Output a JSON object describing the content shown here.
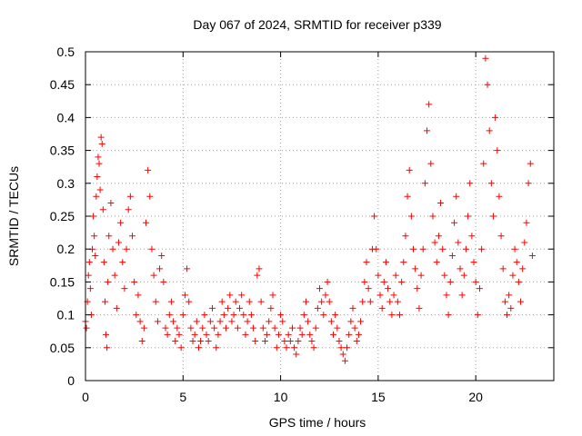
{
  "chart_data": {
    "type": "scatter",
    "title": "Day 067 of 2024, SRMTID for receiver p339",
    "xlabel": "GPS time / hours",
    "ylabel": "SRMTID / TECUs",
    "xlim": [
      0,
      24
    ],
    "ylim": [
      0,
      0.5
    ],
    "x_ticks": [
      0,
      5,
      10,
      15,
      20
    ],
    "x_tick_labels": [
      "0",
      "5",
      "10",
      "15",
      "20"
    ],
    "y_ticks": [
      0,
      0.05,
      0.1,
      0.15,
      0.2,
      0.25,
      0.3,
      0.35,
      0.4,
      0.45,
      0.5
    ],
    "y_tick_labels": [
      "0",
      "0.05",
      "0.1",
      "0.15",
      "0.2",
      "0.25",
      "0.3",
      "0.35",
      "0.4",
      "0.45",
      "0.5"
    ],
    "grid": true,
    "marker": "+",
    "marker_color": "#ff0000",
    "series": [
      {
        "name": "SRMTID",
        "points": [
          [
            0.0,
            0.09
          ],
          [
            0.05,
            0.08
          ],
          [
            0.1,
            0.12
          ],
          [
            0.15,
            0.16
          ],
          [
            0.2,
            0.18
          ],
          [
            0.25,
            0.14
          ],
          [
            0.3,
            0.1
          ],
          [
            0.35,
            0.2
          ],
          [
            0.4,
            0.25
          ],
          [
            0.45,
            0.22
          ],
          [
            0.5,
            0.19
          ],
          [
            0.55,
            0.28
          ],
          [
            0.6,
            0.31
          ],
          [
            0.65,
            0.34
          ],
          [
            0.7,
            0.33
          ],
          [
            0.75,
            0.29
          ],
          [
            0.8,
            0.37
          ],
          [
            0.85,
            0.36
          ],
          [
            0.9,
            0.26
          ],
          [
            0.95,
            0.18
          ],
          [
            1.0,
            0.12
          ],
          [
            1.05,
            0.07
          ],
          [
            1.1,
            0.05
          ],
          [
            1.15,
            0.15
          ],
          [
            1.2,
            0.22
          ],
          [
            1.3,
            0.27
          ],
          [
            1.4,
            0.2
          ],
          [
            1.5,
            0.16
          ],
          [
            1.6,
            0.11
          ],
          [
            1.7,
            0.21
          ],
          [
            1.8,
            0.24
          ],
          [
            1.9,
            0.18
          ],
          [
            2.0,
            0.14
          ],
          [
            2.1,
            0.2
          ],
          [
            2.2,
            0.26
          ],
          [
            2.3,
            0.28
          ],
          [
            2.4,
            0.22
          ],
          [
            2.5,
            0.15
          ],
          [
            2.6,
            0.1
          ],
          [
            2.7,
            0.13
          ],
          [
            2.8,
            0.09
          ],
          [
            2.9,
            0.06
          ],
          [
            3.0,
            0.08
          ],
          [
            3.1,
            0.24
          ],
          [
            3.2,
            0.32
          ],
          [
            3.3,
            0.28
          ],
          [
            3.4,
            0.2
          ],
          [
            3.5,
            0.16
          ],
          [
            3.6,
            0.12
          ],
          [
            3.7,
            0.09
          ],
          [
            3.8,
            0.17
          ],
          [
            3.9,
            0.19
          ],
          [
            4.0,
            0.15
          ],
          [
            4.1,
            0.08
          ],
          [
            4.2,
            0.07
          ],
          [
            4.3,
            0.1
          ],
          [
            4.4,
            0.12
          ],
          [
            4.5,
            0.09
          ],
          [
            4.6,
            0.06
          ],
          [
            4.7,
            0.08
          ],
          [
            4.8,
            0.07
          ],
          [
            4.9,
            0.05
          ],
          [
            5.0,
            0.1
          ],
          [
            5.1,
            0.13
          ],
          [
            5.2,
            0.17
          ],
          [
            5.3,
            0.12
          ],
          [
            5.4,
            0.08
          ],
          [
            5.5,
            0.06
          ],
          [
            5.6,
            0.07
          ],
          [
            5.7,
            0.09
          ],
          [
            5.8,
            0.05
          ],
          [
            5.9,
            0.06
          ],
          [
            6.0,
            0.08
          ],
          [
            6.1,
            0.1
          ],
          [
            6.2,
            0.07
          ],
          [
            6.3,
            0.06
          ],
          [
            6.4,
            0.09
          ],
          [
            6.5,
            0.11
          ],
          [
            6.6,
            0.08
          ],
          [
            6.7,
            0.05
          ],
          [
            6.8,
            0.07
          ],
          [
            6.9,
            0.09
          ],
          [
            7.0,
            0.12
          ],
          [
            7.1,
            0.1
          ],
          [
            7.2,
            0.08
          ],
          [
            7.3,
            0.11
          ],
          [
            7.4,
            0.13
          ],
          [
            7.5,
            0.09
          ],
          [
            7.6,
            0.1
          ],
          [
            7.7,
            0.12
          ],
          [
            7.8,
            0.08
          ],
          [
            7.9,
            0.11
          ],
          [
            8.0,
            0.13
          ],
          [
            8.1,
            0.1
          ],
          [
            8.2,
            0.07
          ],
          [
            8.3,
            0.09
          ],
          [
            8.4,
            0.12
          ],
          [
            8.5,
            0.1
          ],
          [
            8.6,
            0.08
          ],
          [
            8.7,
            0.06
          ],
          [
            8.8,
            0.16
          ],
          [
            8.9,
            0.17
          ],
          [
            9.0,
            0.12
          ],
          [
            9.1,
            0.08
          ],
          [
            9.2,
            0.06
          ],
          [
            9.3,
            0.07
          ],
          [
            9.4,
            0.09
          ],
          [
            9.5,
            0.11
          ],
          [
            9.6,
            0.13
          ],
          [
            9.7,
            0.08
          ],
          [
            9.8,
            0.05
          ],
          [
            9.9,
            0.07
          ],
          [
            10.0,
            0.1
          ],
          [
            10.1,
            0.09
          ],
          [
            10.2,
            0.06
          ],
          [
            10.3,
            0.05
          ],
          [
            10.4,
            0.07
          ],
          [
            10.5,
            0.06
          ],
          [
            10.6,
            0.08
          ],
          [
            10.7,
            0.05
          ],
          [
            10.8,
            0.04
          ],
          [
            10.9,
            0.06
          ],
          [
            11.0,
            0.08
          ],
          [
            11.1,
            0.07
          ],
          [
            11.2,
            0.1
          ],
          [
            11.3,
            0.12
          ],
          [
            11.4,
            0.09
          ],
          [
            11.5,
            0.07
          ],
          [
            11.6,
            0.06
          ],
          [
            11.7,
            0.05
          ],
          [
            11.8,
            0.08
          ],
          [
            11.9,
            0.11
          ],
          [
            12.0,
            0.14
          ],
          [
            12.1,
            0.12
          ],
          [
            12.2,
            0.1
          ],
          [
            12.3,
            0.13
          ],
          [
            12.4,
            0.15
          ],
          [
            12.5,
            0.12
          ],
          [
            12.6,
            0.09
          ],
          [
            12.7,
            0.07
          ],
          [
            12.8,
            0.1
          ],
          [
            12.9,
            0.08
          ],
          [
            13.0,
            0.06
          ],
          [
            13.1,
            0.05
          ],
          [
            13.2,
            0.04
          ],
          [
            13.3,
            0.03
          ],
          [
            13.4,
            0.05
          ],
          [
            13.5,
            0.07
          ],
          [
            13.6,
            0.09
          ],
          [
            13.7,
            0.11
          ],
          [
            13.8,
            0.08
          ],
          [
            13.9,
            0.06
          ],
          [
            14.0,
            0.07
          ],
          [
            14.1,
            0.09
          ],
          [
            14.2,
            0.12
          ],
          [
            14.3,
            0.15
          ],
          [
            14.4,
            0.18
          ],
          [
            14.5,
            0.14
          ],
          [
            14.6,
            0.12
          ],
          [
            14.7,
            0.2
          ],
          [
            14.8,
            0.25
          ],
          [
            14.9,
            0.2
          ],
          [
            15.0,
            0.16
          ],
          [
            15.1,
            0.13
          ],
          [
            15.2,
            0.11
          ],
          [
            15.3,
            0.15
          ],
          [
            15.4,
            0.18
          ],
          [
            15.5,
            0.14
          ],
          [
            15.6,
            0.12
          ],
          [
            15.7,
            0.1
          ],
          [
            15.8,
            0.13
          ],
          [
            15.9,
            0.16
          ],
          [
            16.0,
            0.12
          ],
          [
            16.1,
            0.1
          ],
          [
            16.2,
            0.15
          ],
          [
            16.3,
            0.18
          ],
          [
            16.4,
            0.22
          ],
          [
            16.5,
            0.28
          ],
          [
            16.6,
            0.32
          ],
          [
            16.7,
            0.25
          ],
          [
            16.8,
            0.2
          ],
          [
            16.9,
            0.17
          ],
          [
            17.0,
            0.14
          ],
          [
            17.1,
            0.11
          ],
          [
            17.2,
            0.16
          ],
          [
            17.3,
            0.2
          ],
          [
            17.4,
            0.3
          ],
          [
            17.5,
            0.38
          ],
          [
            17.6,
            0.42
          ],
          [
            17.7,
            0.33
          ],
          [
            17.8,
            0.25
          ],
          [
            17.9,
            0.21
          ],
          [
            18.0,
            0.18
          ],
          [
            18.1,
            0.22
          ],
          [
            18.2,
            0.27
          ],
          [
            18.3,
            0.2
          ],
          [
            18.4,
            0.16
          ],
          [
            18.5,
            0.13
          ],
          [
            18.6,
            0.1
          ],
          [
            18.7,
            0.15
          ],
          [
            18.8,
            0.19
          ],
          [
            18.9,
            0.24
          ],
          [
            19.0,
            0.28
          ],
          [
            19.1,
            0.21
          ],
          [
            19.2,
            0.17
          ],
          [
            19.3,
            0.13
          ],
          [
            19.4,
            0.16
          ],
          [
            19.5,
            0.2
          ],
          [
            19.6,
            0.25
          ],
          [
            19.7,
            0.3
          ],
          [
            19.8,
            0.22
          ],
          [
            19.9,
            0.18
          ],
          [
            20.0,
            0.15
          ],
          [
            20.1,
            0.1
          ],
          [
            20.2,
            0.14
          ],
          [
            20.3,
            0.2
          ],
          [
            20.4,
            0.33
          ],
          [
            20.5,
            0.49
          ],
          [
            20.6,
            0.45
          ],
          [
            20.7,
            0.38
          ],
          [
            20.8,
            0.3
          ],
          [
            20.9,
            0.25
          ],
          [
            21.0,
            0.4
          ],
          [
            21.1,
            0.35
          ],
          [
            21.2,
            0.28
          ],
          [
            21.3,
            0.22
          ],
          [
            21.4,
            0.17
          ],
          [
            21.5,
            0.12
          ],
          [
            21.6,
            0.1
          ],
          [
            21.7,
            0.13
          ],
          [
            21.8,
            0.11
          ],
          [
            21.9,
            0.16
          ],
          [
            22.0,
            0.2
          ],
          [
            22.1,
            0.18
          ],
          [
            22.2,
            0.15
          ],
          [
            22.3,
            0.12
          ],
          [
            22.4,
            0.17
          ],
          [
            22.5,
            0.21
          ],
          [
            22.6,
            0.24
          ],
          [
            22.7,
            0.3
          ],
          [
            22.8,
            0.33
          ],
          [
            22.9,
            0.19
          ]
        ]
      }
    ]
  }
}
